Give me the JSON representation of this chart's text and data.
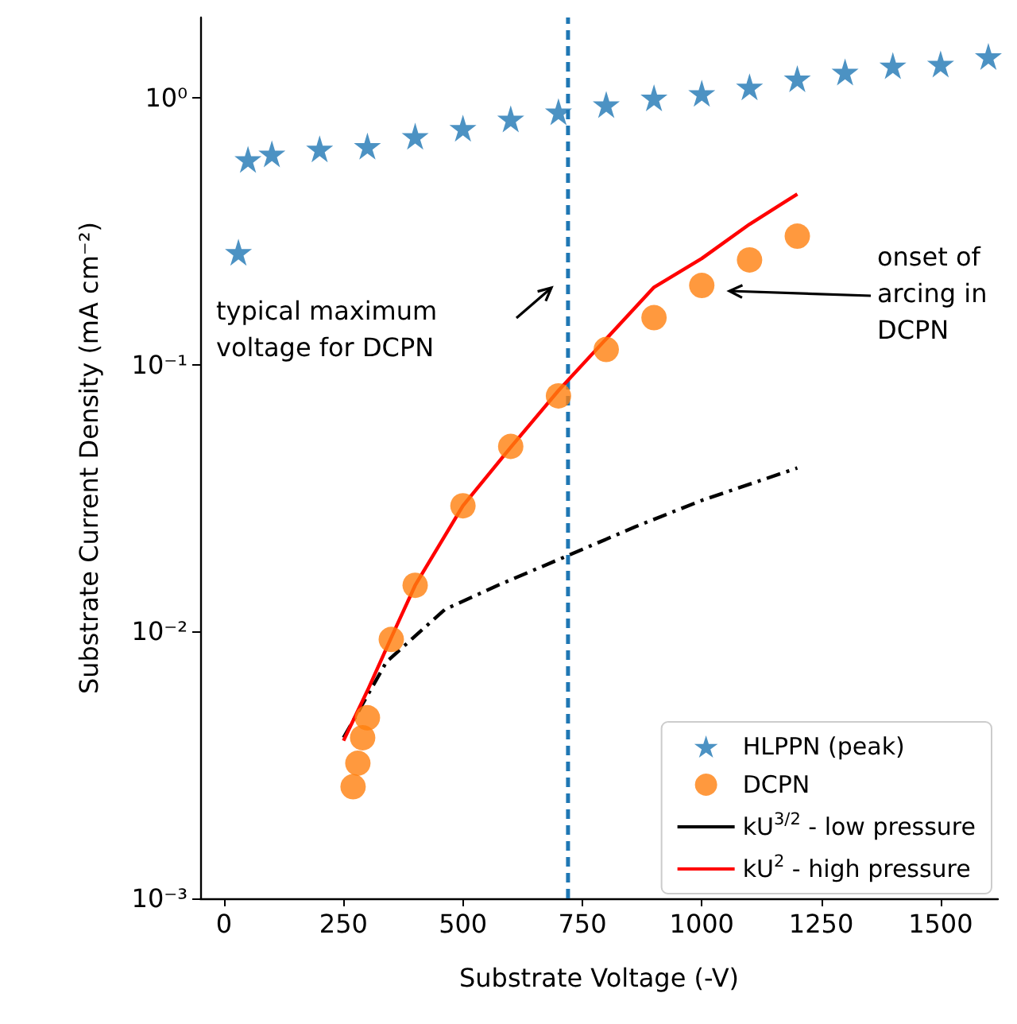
{
  "chart_data": {
    "type": "scatter",
    "xlabel": "Substrate Voltage (-V)",
    "ylabel": "Substrate Current Density (mA cm⁻²)",
    "xlim": [
      -50,
      1620
    ],
    "xticks": [
      0,
      250,
      500,
      750,
      1000,
      1250,
      1500
    ],
    "ylim": [
      0.001,
      2
    ],
    "yticks": [
      {
        "value": 0.001,
        "label": "10⁻³"
      },
      {
        "value": 0.01,
        "label": "10⁻²"
      },
      {
        "value": 0.1,
        "label": "10⁻¹"
      },
      {
        "value": 1,
        "label": "10⁰"
      }
    ],
    "log": "y",
    "grid": false,
    "legend": "bottom right",
    "series": [
      {
        "name": "HLPPN (peak)",
        "marker": "star",
        "color": "#1f77b4",
        "x": [
          30,
          50,
          100,
          200,
          300,
          400,
          500,
          600,
          700,
          800,
          900,
          1000,
          1100,
          1200,
          1300,
          1400,
          1500,
          1600
        ],
        "values": [
          0.264,
          0.588,
          0.617,
          0.644,
          0.659,
          0.718,
          0.77,
          0.834,
          0.887,
          0.944,
          1.0,
          1.04,
          1.1,
          1.18,
          1.25,
          1.32,
          1.34,
          1.43
        ]
      },
      {
        "name": "DCPN",
        "marker": "circle",
        "color": "#ff7f0e",
        "x": [
          270,
          280,
          290,
          300,
          350,
          400,
          500,
          600,
          700,
          800,
          900,
          1000,
          1100,
          1200
        ],
        "values": [
          0.00262,
          0.00321,
          0.004,
          0.00475,
          0.00934,
          0.0149,
          0.0296,
          0.0494,
          0.0764,
          0.114,
          0.15,
          0.198,
          0.247,
          0.303
        ]
      },
      {
        "name": "kU$^{3/2}$ - low pressure",
        "type": "line",
        "marker": "none",
        "line_style": "dashdot",
        "color": "#000000",
        "x": [
          250,
          340,
          462,
          573,
          718,
          861,
          1000,
          1200
        ],
        "values": [
          0.004,
          0.0077,
          0.0121,
          0.0149,
          0.0192,
          0.0247,
          0.031,
          0.041
        ]
      },
      {
        "name": "kU$^{2}$ - high pressure",
        "type": "line",
        "marker": "none",
        "line_style": "solid",
        "color": "#ff0000",
        "x": [
          250,
          300,
          350,
          400,
          500,
          600,
          700,
          800,
          900,
          1000,
          1100,
          1200
        ],
        "values": [
          0.0039,
          0.006,
          0.0095,
          0.0149,
          0.0296,
          0.049,
          0.08,
          0.125,
          0.195,
          0.25,
          0.336,
          0.436
        ]
      }
    ],
    "ref_lines": [
      {
        "axis": "x",
        "value": 720,
        "color": "#1f77b4",
        "line_style": "dashed"
      }
    ],
    "annotations": [
      "typical maximum voltage for DCPN",
      "onset of arcing in DCPN"
    ]
  }
}
